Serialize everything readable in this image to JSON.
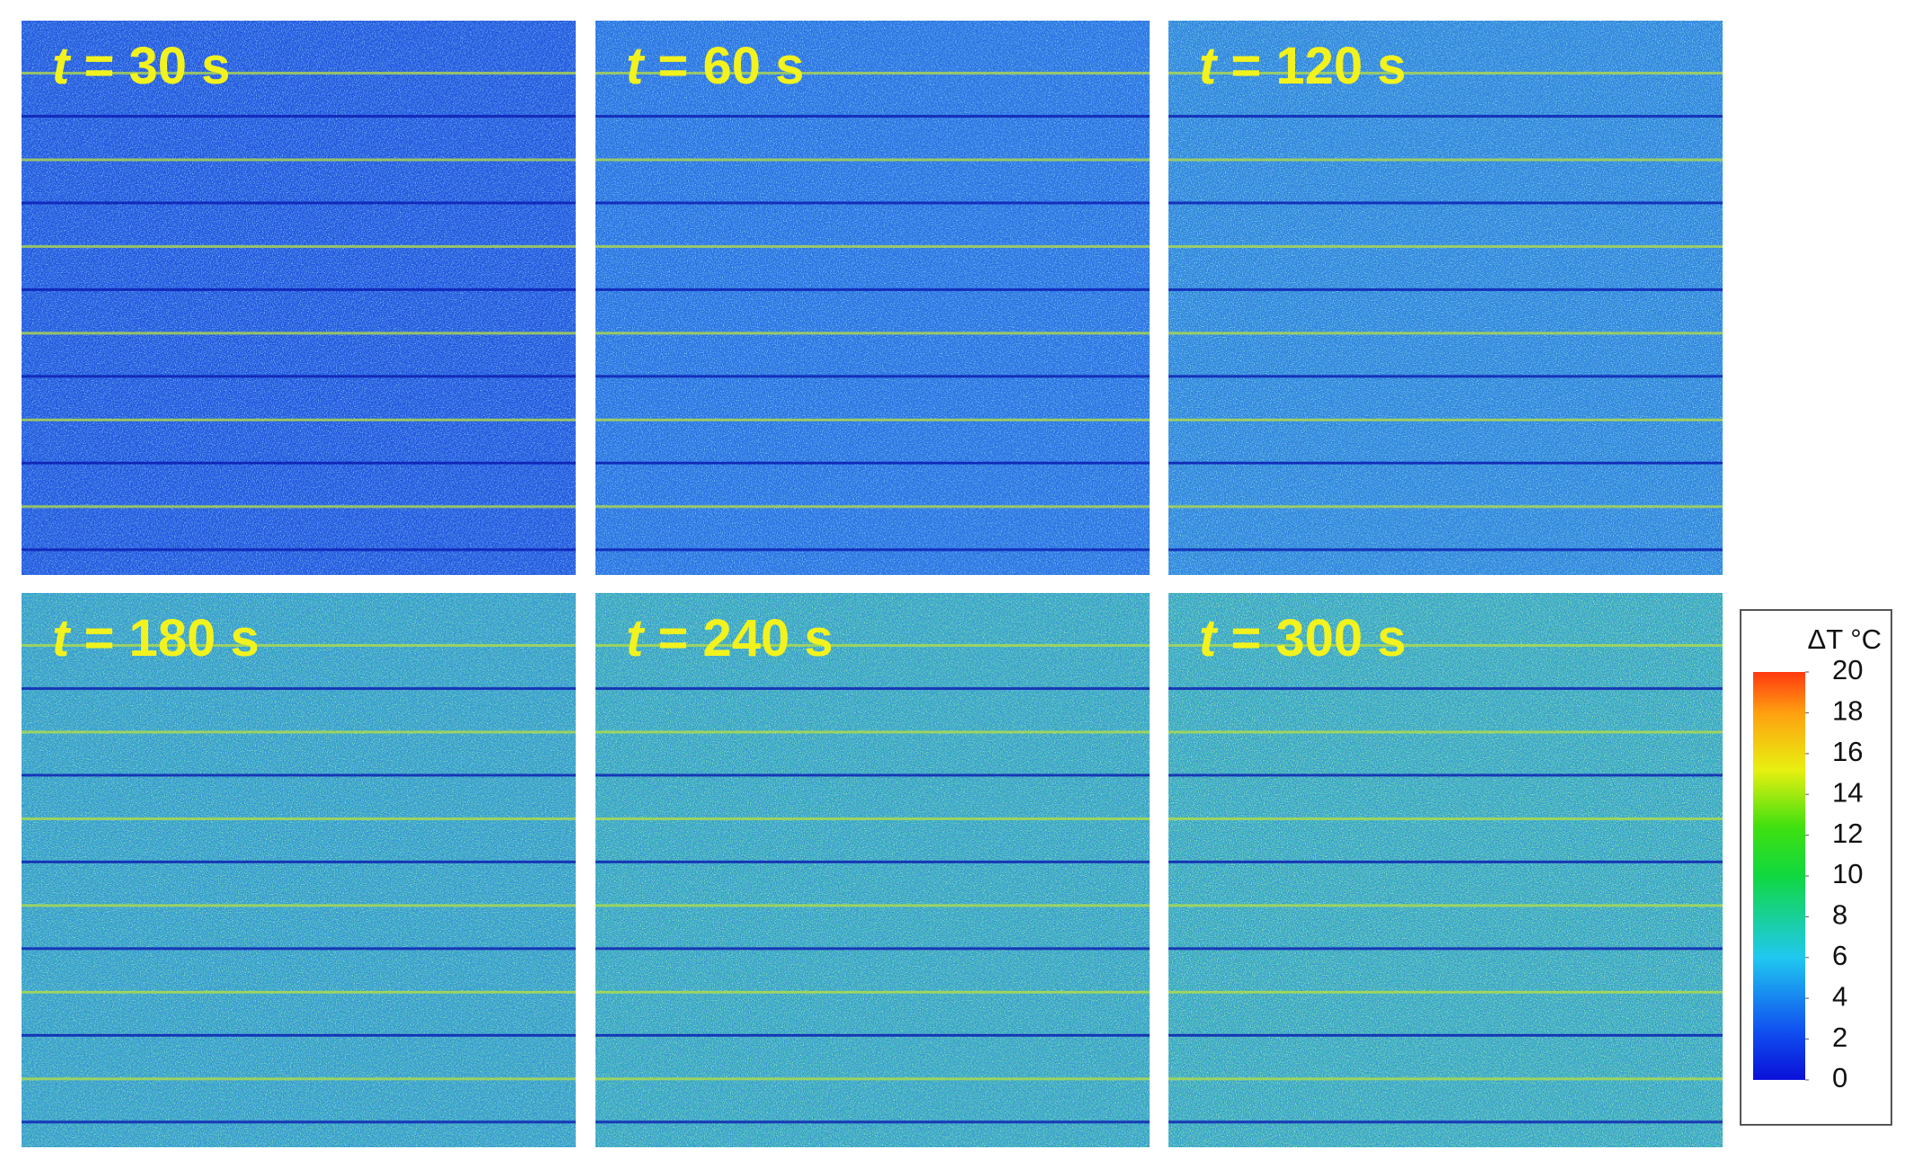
{
  "panels": [
    {
      "symbol": "t",
      "text": "= 30 s"
    },
    {
      "symbol": "t",
      "text": "= 60 s"
    },
    {
      "symbol": "t",
      "text": "= 120 s"
    },
    {
      "symbol": "t",
      "text": "= 180 s"
    },
    {
      "symbol": "t",
      "text": "= 240 s"
    },
    {
      "symbol": "t",
      "text": "= 300 s"
    }
  ],
  "colorbar": {
    "title": "ΔT °C",
    "range": [
      0,
      20
    ],
    "ticks": [
      0,
      2,
      4,
      6,
      8,
      10,
      12,
      14,
      16,
      18,
      20
    ]
  }
}
